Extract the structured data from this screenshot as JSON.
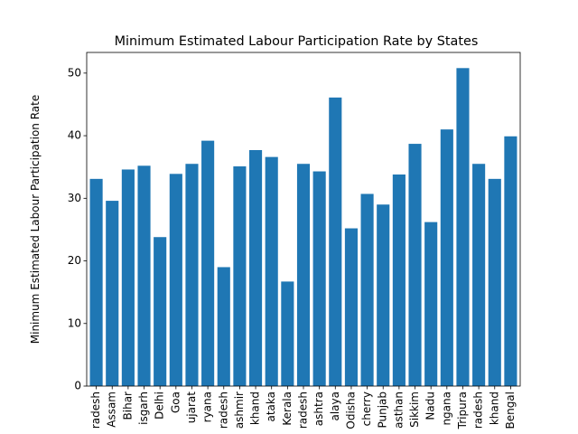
{
  "chart_data": {
    "type": "bar",
    "title": "Minimum Estimated Labour Participation Rate by States",
    "y_label": "Minimum Estimated Labour Participation Rate",
    "categories": [
      "radesh",
      "Assam",
      "Bihar",
      "isgarh",
      "Delhi",
      "Goa",
      "ujarat",
      "ryana",
      "radesh",
      "ashmir",
      "khand",
      "ataka",
      "Kerala",
      "radesh",
      "ashtra",
      "alaya",
      "Odisha",
      "cherry",
      "Punjab",
      "asthan",
      "Sikkim",
      "Nadu",
      "ngana",
      "Tripura",
      "radesh",
      "khand",
      "Bengal"
    ],
    "values": [
      33.1,
      29.6,
      34.6,
      35.2,
      23.8,
      33.9,
      35.5,
      39.2,
      19.0,
      35.1,
      37.7,
      36.6,
      16.7,
      35.5,
      34.3,
      46.1,
      25.2,
      30.7,
      29.0,
      33.8,
      38.7,
      26.2,
      41.0,
      50.8,
      35.5,
      33.1,
      39.9
    ],
    "color": "#1f77b4",
    "ylim": [
      0,
      53.3
    ],
    "yticks": [
      0,
      10,
      20,
      30,
      40,
      50
    ]
  }
}
